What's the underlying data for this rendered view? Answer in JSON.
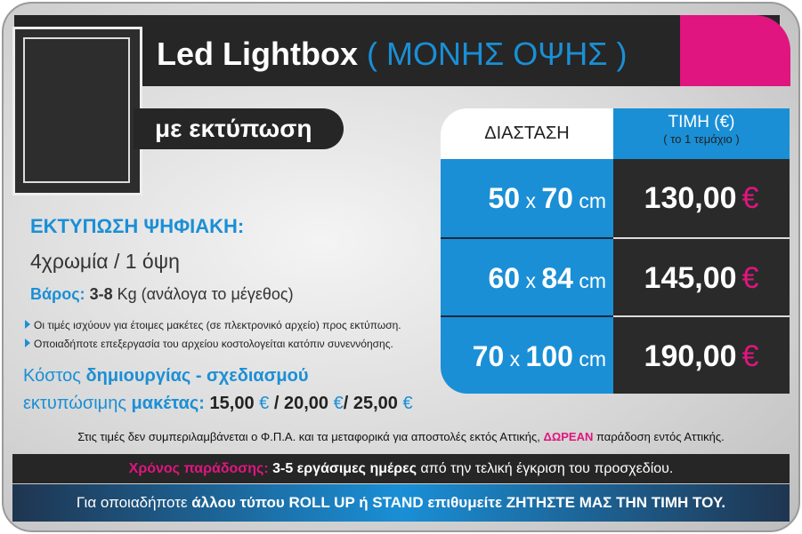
{
  "header": {
    "title": "Led Lightbox",
    "subtitle": "( ΜΟΝΗΣ ΟΨΗΣ )"
  },
  "tag": "με εκτύπωση",
  "specs": {
    "heading": "ΕΚΤΥΠΩΣΗ ΨΗΦΙΑΚΗ:",
    "colors": "4χρωμία / 1 όψη",
    "weight_label": "Βάρος:",
    "weight_value": "3-8",
    "weight_unit": "Kg (ανάλογα το μέγεθος)"
  },
  "notes": [
    "Οι τιμές ισχύουν για έτοιμες μακέτες (σε πλεκτρονικό αρχείο) προς εκτύπωση.",
    "Οποιαδήποτε επεξεργασία του αρχείου κοστολογείται κατόπιν συνεννόησης."
  ],
  "design_cost": {
    "line1_prefix": "Κόστος",
    "line1_bold": "δημιουργίας - σχεδιασμού",
    "line2_prefix": "εκτυπώσιμης",
    "line2_bold": "μακέτας:",
    "prices": [
      "15,00",
      "20,00",
      "25,00"
    ],
    "separator": "/"
  },
  "table": {
    "headers": [
      "ΔΙΑΣΤΑΣΗ",
      "ΤΙΜΗ (€)"
    ],
    "header_note": "( το 1 τεμάχιο )",
    "dim_sep": "x",
    "unit": "cm",
    "currency": "€",
    "rows": [
      {
        "width": "50",
        "height": "70",
        "price": "130,00"
      },
      {
        "width": "60",
        "height": "84",
        "price": "145,00"
      },
      {
        "width": "70",
        "height": "100",
        "price": "190,00"
      }
    ]
  },
  "vat_note": {
    "text": "Στις τιμές δεν συμπεριλαμβάνεται ο Φ.Π.Α. και τα μεταφορικά για αποστολές εκτός Αττικής,",
    "highlight": "ΔΩΡΕΑΝ",
    "end": "παράδοση εντός Αττικής."
  },
  "delivery": {
    "label": "Χρόνος παράδοσης:",
    "bold": "3-5 εργάσιμες ημέρες",
    "text": "από την τελική έγκριση του προσχεδίου."
  },
  "footer": {
    "prefix": "Για οποιαδήποτε",
    "bold": "άλλου τύπου ROLL UP ή STAND επιθυμείτε ΖΗΤΗΣΤΕ ΜΑΣ ΤΗΝ ΤΙΜΗ ΤΟΥ."
  }
}
